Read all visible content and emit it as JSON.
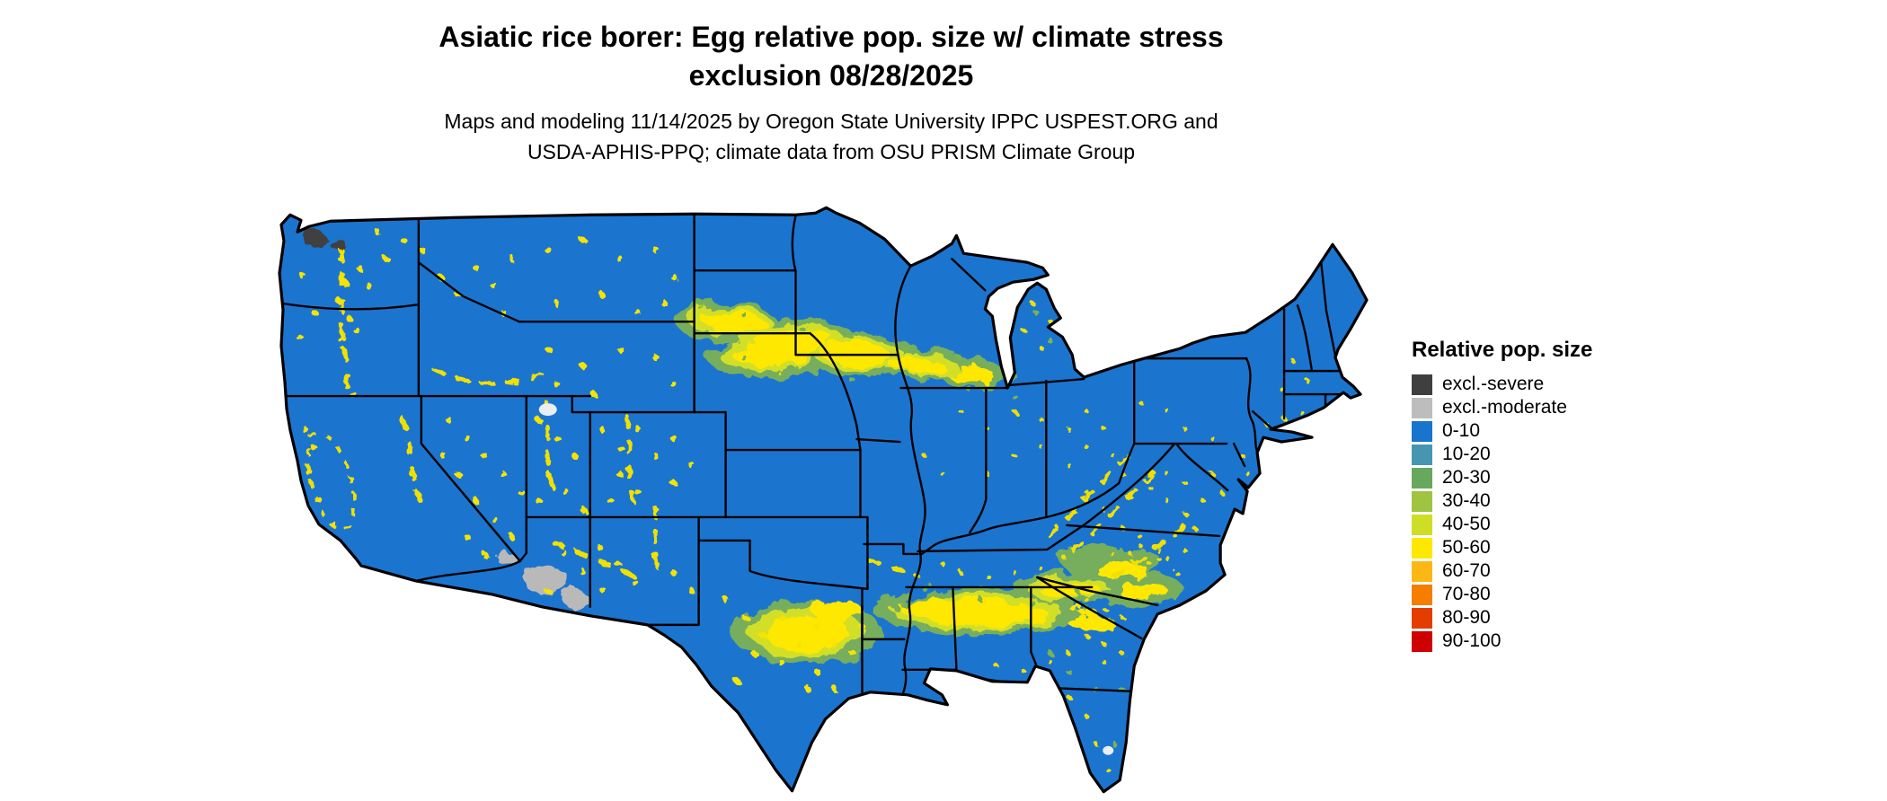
{
  "header": {
    "title_line1": "Asiatic rice borer: Egg relative pop. size w/ climate stress",
    "title_line2": "exclusion 08/28/2025",
    "subtitle_line1": "Maps and modeling 11/14/2025 by Oregon State University IPPC USPEST.ORG and",
    "subtitle_line2": "USDA-APHIS-PPQ; climate data from OSU PRISM Climate Group"
  },
  "legend": {
    "title": "Relative pop. size",
    "items": [
      {
        "label": "excl.-severe",
        "color": "#3f3f3f"
      },
      {
        "label": "excl.-moderate",
        "color": "#bdbdbd"
      },
      {
        "label": "0-10",
        "color": "#1874cd"
      },
      {
        "label": "10-20",
        "color": "#4696b2"
      },
      {
        "label": "20-30",
        "color": "#68a85e"
      },
      {
        "label": "30-40",
        "color": "#9ec441"
      },
      {
        "label": "40-50",
        "color": "#cede26"
      },
      {
        "label": "50-60",
        "color": "#ffe800"
      },
      {
        "label": "60-70",
        "color": "#fdb714"
      },
      {
        "label": "70-80",
        "color": "#f57e00"
      },
      {
        "label": "80-90",
        "color": "#e33d00"
      },
      {
        "label": "90-100",
        "color": "#ce0000"
      }
    ]
  },
  "map": {
    "base_color": "#1b75cf",
    "border_color": "#000000",
    "exclusion_moderate_color": "#b9b9b9",
    "exclusion_severe_color": "#3f3f3f"
  }
}
